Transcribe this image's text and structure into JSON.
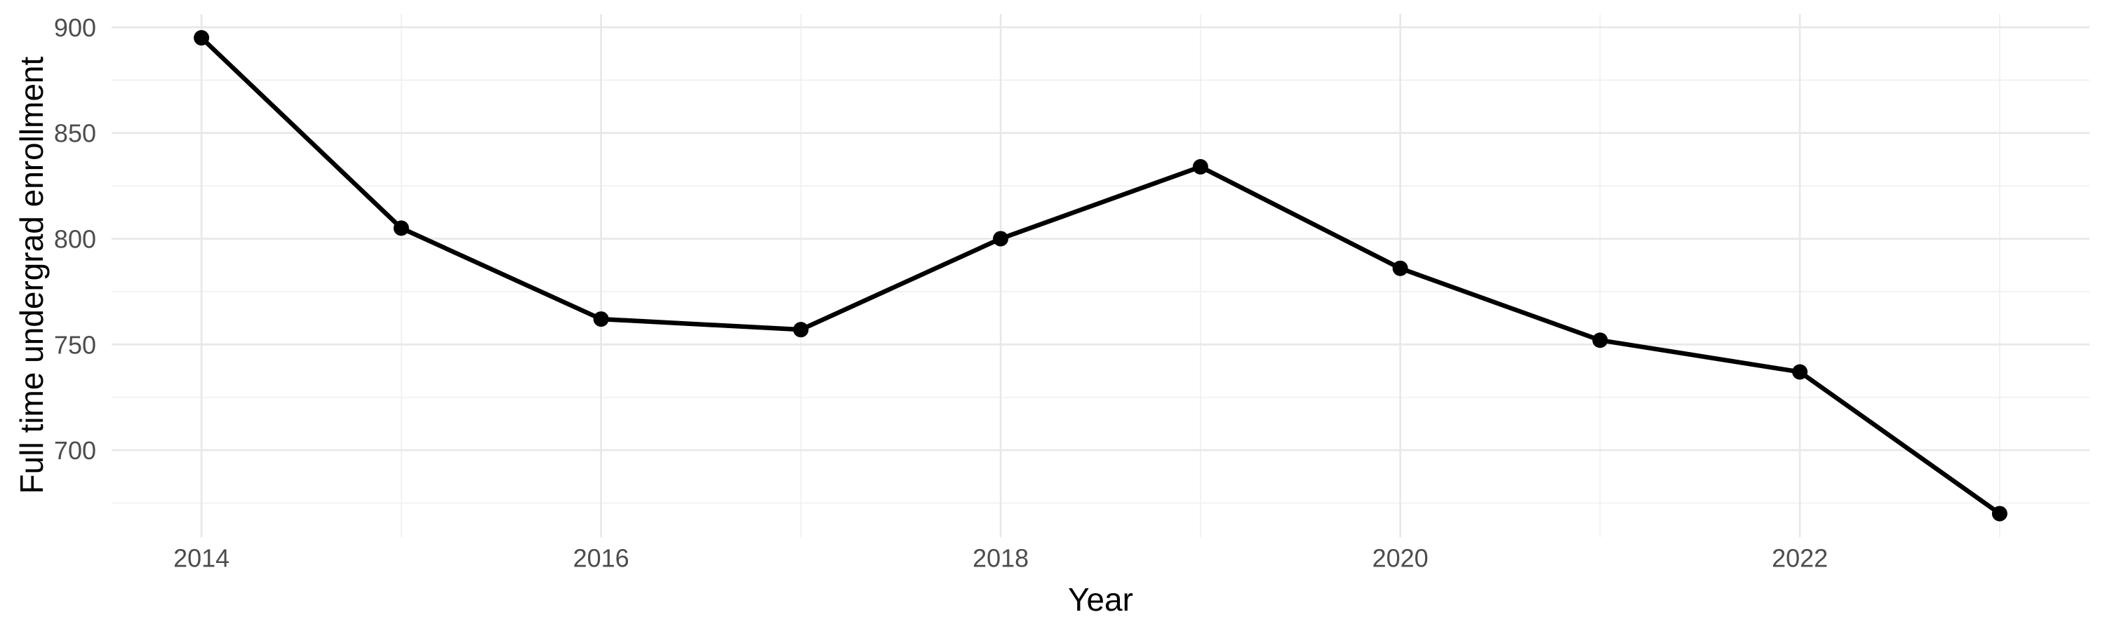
{
  "chart_data": {
    "type": "line",
    "title": "",
    "xlabel": "Year",
    "ylabel": "Full time undergrad enrollment",
    "series_name": "Full time undergrad enrollment",
    "x": [
      2014,
      2015,
      2016,
      2017,
      2018,
      2019,
      2020,
      2021,
      2022,
      2023
    ],
    "values": [
      895,
      805,
      762,
      757,
      800,
      834,
      786,
      752,
      737,
      670
    ],
    "xlim": [
      2013.55,
      2023.45
    ],
    "ylim": [
      658.75,
      906.25
    ],
    "x_major_ticks": [
      2014,
      2016,
      2018,
      2020,
      2022
    ],
    "x_major_tick_labels": [
      "2014",
      "2016",
      "2018",
      "2020",
      "2022"
    ],
    "x_minor_ticks": [
      2015,
      2017,
      2019,
      2021,
      2023
    ],
    "y_major_ticks": [
      700,
      750,
      800,
      850,
      900
    ],
    "y_major_tick_labels": [
      "700",
      "750",
      "800",
      "850",
      "900"
    ],
    "y_minor_ticks": [
      675,
      725,
      775,
      825,
      875
    ],
    "grid": true,
    "legend_position": "none",
    "point_markers": true,
    "style": {
      "line_color": "#000000",
      "point_color": "#000000",
      "grid_major_color": "#e8e8e8",
      "grid_minor_color": "#f0f0f0",
      "tick_label_color": "#4d4d4d",
      "axis_title_color": "#000000",
      "background_color": "#ffffff"
    }
  }
}
